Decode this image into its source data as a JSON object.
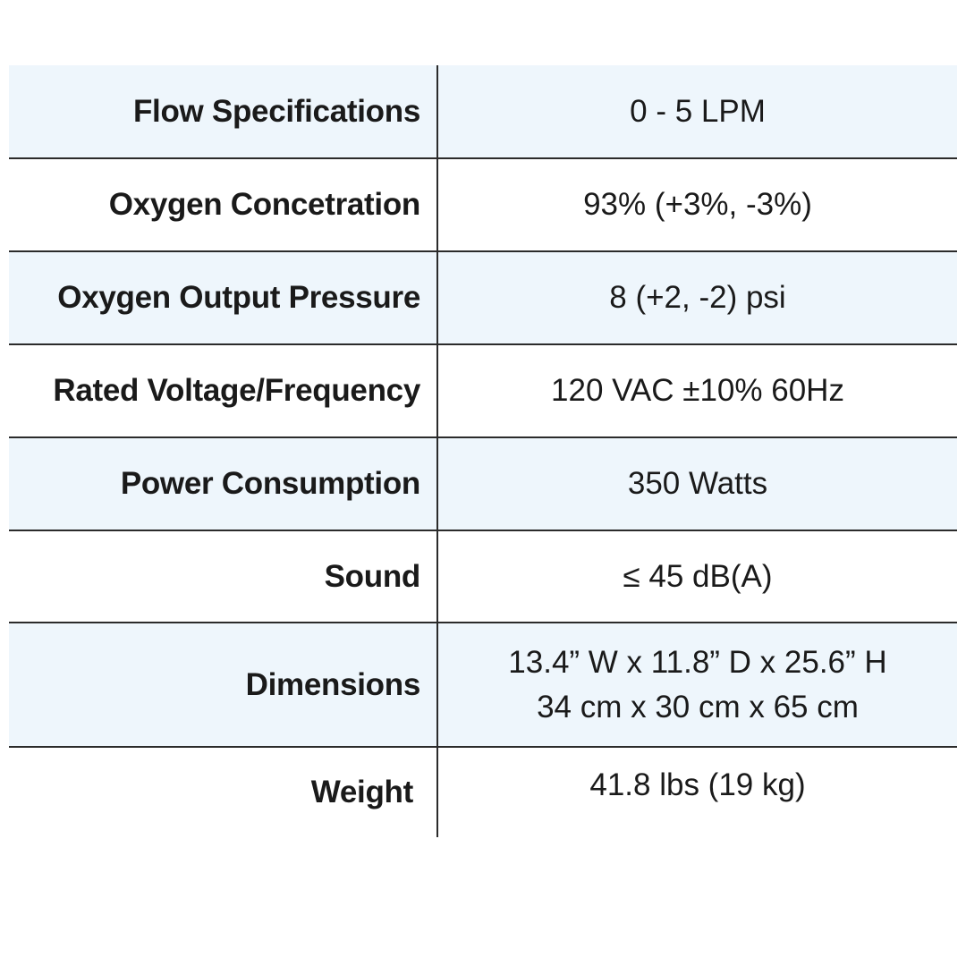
{
  "specs": [
    {
      "label": "Flow Specifications",
      "value": [
        "0 - 5 LPM"
      ]
    },
    {
      "label": "Oxygen Concetration",
      "value": [
        "93% (+3%, -3%)"
      ]
    },
    {
      "label": "Oxygen Output Pressure",
      "value": [
        "8 (+2, -2) psi"
      ]
    },
    {
      "label": "Rated Voltage/Frequency",
      "value": [
        "120 VAC ±10% 60Hz"
      ]
    },
    {
      "label": "Power Consumption",
      "value": [
        "350 Watts"
      ]
    },
    {
      "label": "Sound",
      "value": [
        "≤ 45 dB(A)"
      ]
    },
    {
      "label": "Dimensions",
      "value": [
        "13.4” W x 11.8” D x 25.6” H",
        "34 cm x 30 cm x 65 cm"
      ]
    },
    {
      "label": "Weight",
      "value": [
        "41.8 lbs (19 kg)"
      ]
    }
  ],
  "colors": {
    "shaded_row": "#eef6fc",
    "plain_row": "#ffffff",
    "rule": "#2b2b2b",
    "text": "#1a1a1a"
  }
}
